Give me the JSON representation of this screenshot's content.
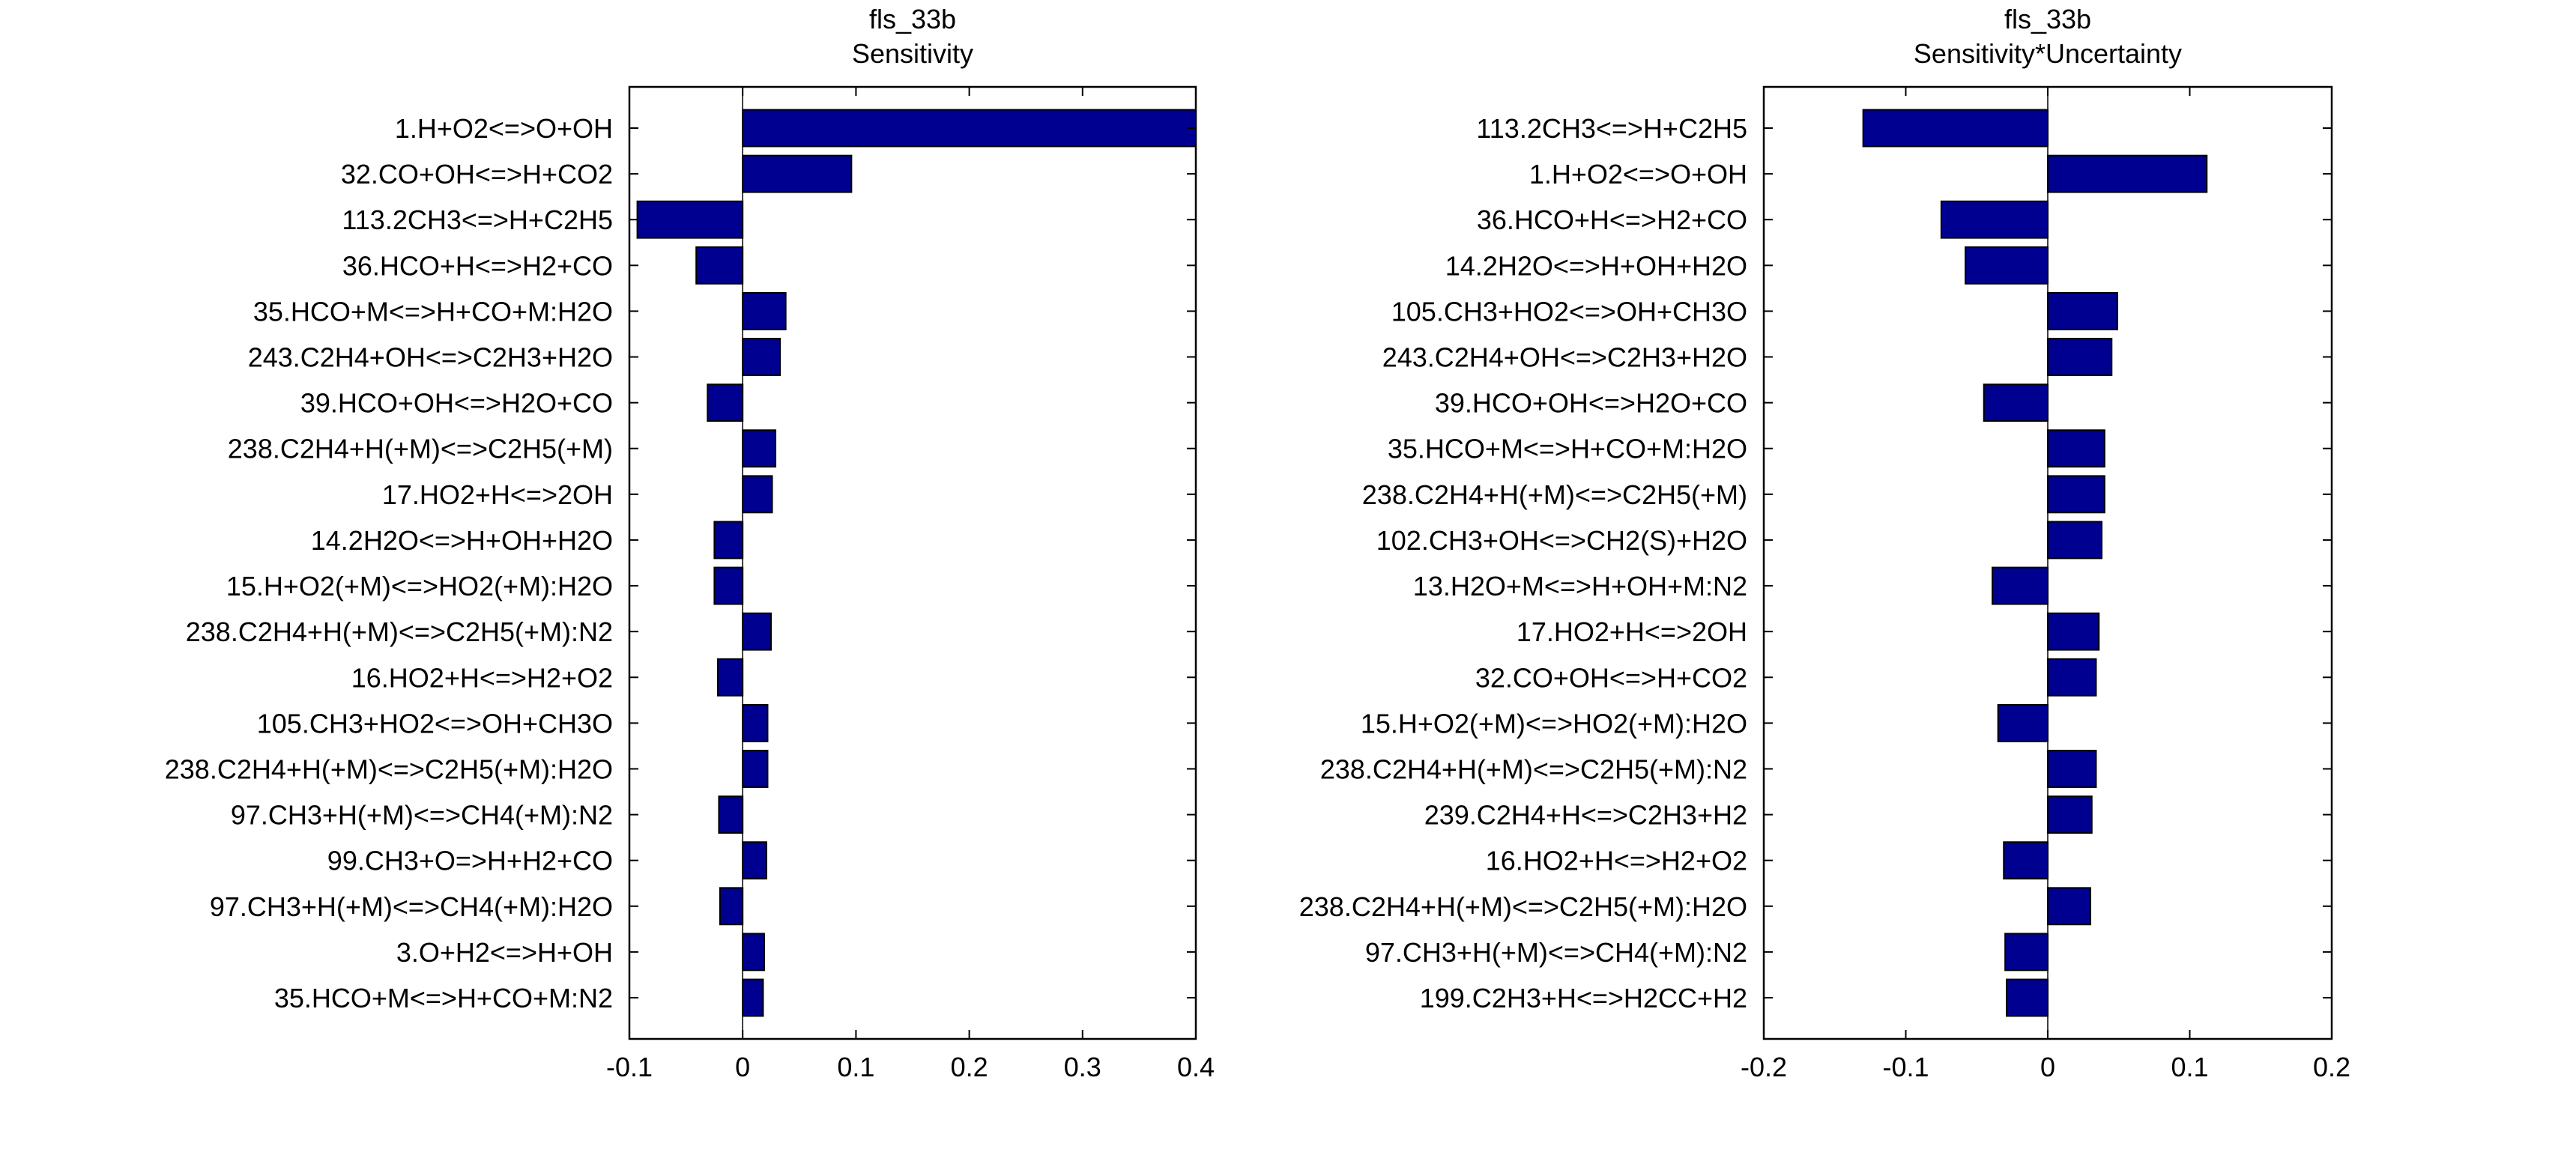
{
  "chart_data": [
    {
      "type": "bar",
      "orientation": "horizontal",
      "title": "fls_33b",
      "subtitle": "Sensitivity",
      "xlabel": "",
      "ylabel": "",
      "xlim": [
        -0.1,
        0.4
      ],
      "xticks": [
        -0.1,
        0,
        0.1,
        0.2,
        0.3,
        0.4
      ],
      "xtick_labels": [
        "-0.1",
        "0",
        "0.1",
        "0.2",
        "0.3",
        "0.4"
      ],
      "grid": false,
      "bar_color": "#000090",
      "categories": [
        "1.H+O2<=>O+OH",
        "32.CO+OH<=>H+CO2",
        "113.2CH3<=>H+C2H5",
        "36.HCO+H<=>H2+CO",
        "35.HCO+M<=>H+CO+M:H2O",
        "243.C2H4+OH<=>C2H3+H2O",
        "39.HCO+OH<=>H2O+CO",
        "238.C2H4+H(+M)<=>C2H5(+M)",
        "17.HO2+H<=>2OH",
        "14.2H2O<=>H+OH+H2O",
        "15.H+O2(+M)<=>HO2(+M):H2O",
        "238.C2H4+H(+M)<=>C2H5(+M):N2",
        "16.HO2+H<=>H2+O2",
        "105.CH3+HO2<=>OH+CH3O",
        "238.C2H4+H(+M)<=>C2H5(+M):H2O",
        "97.CH3+H(+M)<=>CH4(+M):N2",
        "99.CH3+O=>H+H2+CO",
        "97.CH3+H(+M)<=>CH4(+M):H2O",
        "3.O+H2<=>H+OH",
        "35.HCO+M<=>H+CO+M:N2"
      ],
      "values": [
        0.4,
        0.096,
        -0.093,
        -0.041,
        0.038,
        0.033,
        -0.031,
        0.029,
        0.026,
        -0.025,
        -0.025,
        0.025,
        -0.022,
        0.022,
        0.022,
        -0.021,
        0.021,
        -0.02,
        0.019,
        0.018
      ]
    },
    {
      "type": "bar",
      "orientation": "horizontal",
      "title": "fls_33b",
      "subtitle": "Sensitivity*Uncertainty",
      "xlabel": "",
      "ylabel": "",
      "xlim": [
        -0.2,
        0.2
      ],
      "xticks": [
        -0.2,
        -0.1,
        0,
        0.1,
        0.2
      ],
      "xtick_labels": [
        "-0.2",
        "-0.1",
        "0",
        "0.1",
        "0.2"
      ],
      "grid": false,
      "bar_color": "#000090",
      "categories": [
        "113.2CH3<=>H+C2H5",
        "1.H+O2<=>O+OH",
        "36.HCO+H<=>H2+CO",
        "14.2H2O<=>H+OH+H2O",
        "105.CH3+HO2<=>OH+CH3O",
        "243.C2H4+OH<=>C2H3+H2O",
        "39.HCO+OH<=>H2O+CO",
        "35.HCO+M<=>H+CO+M:H2O",
        "238.C2H4+H(+M)<=>C2H5(+M)",
        "102.CH3+OH<=>CH2(S)+H2O",
        "13.H2O+M<=>H+OH+M:N2",
        "17.HO2+H<=>2OH",
        "32.CO+OH<=>H+CO2",
        "15.H+O2(+M)<=>HO2(+M):H2O",
        "238.C2H4+H(+M)<=>C2H5(+M):N2",
        "239.C2H4+H<=>C2H3+H2",
        "16.HO2+H<=>H2+O2",
        "238.C2H4+H(+M)<=>C2H5(+M):H2O",
        "97.CH3+H(+M)<=>CH4(+M):N2",
        "199.C2H3+H<=>H2CC+H2"
      ],
      "values": [
        -0.13,
        0.112,
        -0.075,
        -0.058,
        0.049,
        0.045,
        -0.045,
        0.04,
        0.04,
        0.038,
        -0.039,
        0.036,
        0.034,
        -0.035,
        0.034,
        0.031,
        -0.031,
        0.03,
        -0.03,
        -0.029
      ]
    }
  ]
}
